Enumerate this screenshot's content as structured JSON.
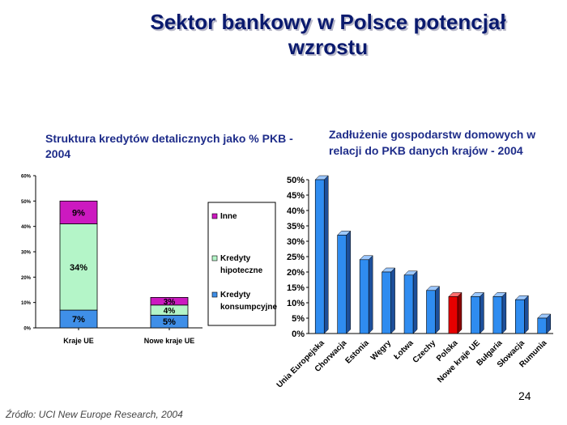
{
  "slide": {
    "title": "Sektor bankowy w Polsce potencjał wzrostu",
    "page_number": "24",
    "source": "Źródło: UCI New Europe Research, 2004"
  },
  "chart_data": [
    {
      "type": "bar",
      "stacked": true,
      "title": "Struktura kredytów detalicznych jako % PKB - 2004",
      "categories": [
        "Kraje UE",
        "Nowe kraje UE"
      ],
      "series": [
        {
          "name": "Kredyty konsumpcyjne",
          "values": [
            7,
            5
          ],
          "labels": [
            "7%",
            "5%"
          ],
          "color": "#3f8fe8"
        },
        {
          "name": "Kredyty hipoteczne",
          "values": [
            34,
            4
          ],
          "labels": [
            "34%",
            "4%"
          ],
          "color": "#b4f5c8"
        },
        {
          "name": "Inne",
          "values": [
            9,
            3
          ],
          "labels": [
            "9%",
            "3%"
          ],
          "color": "#cc19c0"
        }
      ],
      "ylim": [
        0,
        60
      ],
      "yticks": [
        "0%",
        "10%",
        "20%",
        "30%",
        "40%",
        "50%",
        "60%"
      ],
      "legend": "right",
      "grid": false
    },
    {
      "type": "bar",
      "title": "Zadłużenie gospodarstw domowych w relacji do PKB danych krajów - 2004",
      "categories": [
        "Unia Europejska",
        "Chorwacja",
        "Estonia",
        "Węgry",
        "Łotwa",
        "Czechy",
        "Polska",
        "Nowe kraje UE",
        "Bułgaria",
        "Słowacja",
        "Rumunia"
      ],
      "values": [
        50,
        32,
        24,
        20,
        19,
        14,
        12,
        12,
        12,
        11,
        5
      ],
      "highlight": "Polska",
      "bar_color": "#2f8cf0",
      "highlight_color": "#e60000",
      "ylim": [
        0,
        50
      ],
      "yticks": [
        "0%",
        "5%",
        "10%",
        "15%",
        "20%",
        "25%",
        "30%",
        "35%",
        "40%",
        "45%",
        "50%"
      ],
      "grid": false
    }
  ]
}
